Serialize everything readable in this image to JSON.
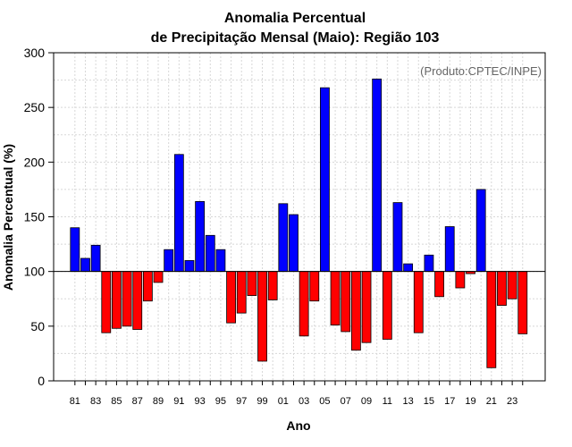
{
  "chart_data": {
    "type": "bar",
    "title_line1": "Anomalia Percentual",
    "title_line2": "de Precipitação Mensal (Maio): Região 103",
    "xlabel": "Ano",
    "ylabel": "Anomalia Percentual (%)",
    "credit": "(Produto:CPTEC/INPE)",
    "baseline": 100,
    "ylim": [
      0,
      300
    ],
    "yticks": [
      0,
      50,
      100,
      150,
      200,
      250,
      300
    ],
    "grid": true,
    "colors": {
      "above": "#0000ff",
      "below": "#ff0000"
    },
    "categories": [
      "81",
      "82",
      "83",
      "84",
      "85",
      "86",
      "87",
      "88",
      "89",
      "90",
      "91",
      "92",
      "93",
      "94",
      "95",
      "96",
      "97",
      "98",
      "99",
      "00",
      "01",
      "02",
      "03",
      "04",
      "05",
      "06",
      "07",
      "08",
      "09",
      "10",
      "11",
      "12",
      "13",
      "14",
      "15",
      "16",
      "17",
      "18",
      "19",
      "20",
      "21",
      "22",
      "23",
      "24"
    ],
    "xtick_labels": [
      "81",
      "83",
      "85",
      "87",
      "89",
      "91",
      "93",
      "95",
      "97",
      "99",
      "01",
      "03",
      "05",
      "07",
      "09",
      "11",
      "13",
      "15",
      "17",
      "19",
      "21",
      "23"
    ],
    "values": [
      140,
      112,
      124,
      44,
      48,
      50,
      47,
      73,
      90,
      120,
      207,
      110,
      164,
      133,
      120,
      53,
      62,
      78,
      18,
      74,
      162,
      152,
      41,
      73,
      268,
      51,
      45,
      28,
      35,
      276,
      38,
      163,
      107,
      44,
      115,
      77,
      141,
      85,
      98,
      175,
      12,
      69,
      75,
      43
    ]
  }
}
